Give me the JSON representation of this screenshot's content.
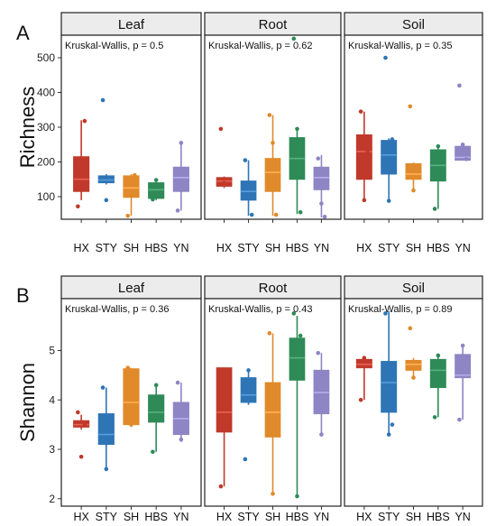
{
  "chart_data": [
    {
      "type": "box",
      "panel_label": "A",
      "ylabel": "Richness",
      "yticks": [
        100,
        200,
        300,
        400,
        500
      ],
      "ylim": [
        35,
        565
      ],
      "categories": [
        "HX",
        "STY",
        "SH",
        "HBS",
        "YN"
      ],
      "colors": [
        "#c0392b",
        "#2e75b6",
        "#e08a2b",
        "#2e8b57",
        "#8e85c4"
      ],
      "facets": [
        {
          "name": "Leaf",
          "stat": "Kruskal-Wallis, p = 0.5",
          "boxes": [
            {
              "q1": 115,
              "median": 150,
              "q3": 215,
              "min": 90,
              "max": 320,
              "points": [
                72,
                175,
                318
              ]
            },
            {
              "q1": 140,
              "median": 148,
              "q3": 160,
              "min": 135,
              "max": 165,
              "points": [
                378,
                90
              ]
            },
            {
              "q1": 98,
              "median": 125,
              "q3": 160,
              "min": 45,
              "max": 165,
              "points": [
                45,
                148,
                162
              ]
            },
            {
              "q1": 95,
              "median": 120,
              "q3": 140,
              "min": 90,
              "max": 148,
              "points": [
                92,
                148
              ]
            },
            {
              "q1": 115,
              "median": 155,
              "q3": 185,
              "min": 60,
              "max": 255,
              "points": [
                60,
                255
              ]
            }
          ]
        },
        {
          "name": "Root",
          "stat": "Kruskal-Wallis, p = 0.62",
          "boxes": [
            {
              "q1": 130,
              "median": 145,
              "q3": 155,
              "min": 125,
              "max": 158,
              "points": [
                295,
                140
              ]
            },
            {
              "q1": 90,
              "median": 115,
              "q3": 145,
              "min": 45,
              "max": 205,
              "points": [
                205,
                95,
                48
              ]
            },
            {
              "q1": 115,
              "median": 170,
              "q3": 210,
              "min": 45,
              "max": 335,
              "points": [
                335,
                255,
                48
              ]
            },
            {
              "q1": 150,
              "median": 210,
              "q3": 270,
              "min": 50,
              "max": 300,
              "points": [
                555,
                295,
                55
              ]
            },
            {
              "q1": 120,
              "median": 155,
              "q3": 185,
              "min": 40,
              "max": 220,
              "points": [
                210,
                80,
                42
              ]
            }
          ]
        },
        {
          "name": "Soil",
          "stat": "Kruskal-Wallis, p = 0.35",
          "boxes": [
            {
              "q1": 150,
              "median": 230,
              "q3": 278,
              "min": 88,
              "max": 345,
              "points": [
                345,
                90,
                230
              ]
            },
            {
              "q1": 165,
              "median": 220,
              "q3": 262,
              "min": 88,
              "max": 268,
              "points": [
                500,
                88,
                265
              ]
            },
            {
              "q1": 150,
              "median": 165,
              "q3": 195,
              "min": 115,
              "max": 198,
              "points": [
                360,
                118
              ]
            },
            {
              "q1": 145,
              "median": 190,
              "q3": 235,
              "min": 65,
              "max": 240,
              "points": [
                65,
                245
              ]
            },
            {
              "q1": 205,
              "median": 213,
              "q3": 245,
              "min": 205,
              "max": 245,
              "points": [
                420,
                250,
                208
              ]
            }
          ]
        }
      ]
    },
    {
      "type": "box",
      "panel_label": "B",
      "ylabel": "Shannon",
      "yticks": [
        2,
        3,
        4,
        5
      ],
      "ylim": [
        1.85,
        6.05
      ],
      "categories": [
        "HX",
        "STY",
        "SH",
        "HBS",
        "YN"
      ],
      "colors": [
        "#c0392b",
        "#2e75b6",
        "#e08a2b",
        "#2e8b57",
        "#8e85c4"
      ],
      "facets": [
        {
          "name": "Leaf",
          "stat": "Kruskal-Wallis, p = 0.36",
          "boxes": [
            {
              "q1": 3.45,
              "median": 3.5,
              "q3": 3.58,
              "min": 3.4,
              "max": 3.7,
              "points": [
                3.75,
                2.85,
                3.5
              ]
            },
            {
              "q1": 3.1,
              "median": 3.3,
              "q3": 3.72,
              "min": 2.6,
              "max": 4.25,
              "points": [
                4.25,
                2.6
              ]
            },
            {
              "q1": 3.5,
              "median": 3.95,
              "q3": 4.63,
              "min": 3.45,
              "max": 4.65,
              "points": [
                4.65,
                3.5
              ]
            },
            {
              "q1": 3.55,
              "median": 3.75,
              "q3": 4.1,
              "min": 2.95,
              "max": 4.3,
              "points": [
                2.95,
                4.3
              ]
            },
            {
              "q1": 3.3,
              "median": 3.62,
              "q3": 3.95,
              "min": 3.15,
              "max": 4.35,
              "points": [
                4.35,
                3.2
              ]
            }
          ]
        },
        {
          "name": "Root",
          "stat": "Kruskal-Wallis, p = 0.43",
          "boxes": [
            {
              "q1": 3.35,
              "median": 3.75,
              "q3": 4.65,
              "min": 2.25,
              "max": 4.65,
              "points": [
                2.25,
                4.6
              ]
            },
            {
              "q1": 3.95,
              "median": 4.1,
              "q3": 4.45,
              "min": 3.9,
              "max": 4.6,
              "points": [
                2.8,
                4.6
              ]
            },
            {
              "q1": 3.25,
              "median": 3.75,
              "q3": 4.35,
              "min": 2.1,
              "max": 5.35,
              "points": [
                5.35,
                2.1
              ]
            },
            {
              "q1": 4.4,
              "median": 4.85,
              "q3": 5.25,
              "min": 2.05,
              "max": 5.7,
              "points": [
                5.75,
                2.05,
                5.3
              ]
            },
            {
              "q1": 3.72,
              "median": 4.15,
              "q3": 4.6,
              "min": 3.3,
              "max": 4.95,
              "points": [
                4.95,
                3.3
              ]
            }
          ]
        },
        {
          "name": "Soil",
          "stat": "Kruskal-Wallis, p = 0.89",
          "boxes": [
            {
              "q1": 4.65,
              "median": 4.72,
              "q3": 4.82,
              "min": 4.0,
              "max": 4.88,
              "points": [
                4.0,
                4.85
              ]
            },
            {
              "q1": 3.75,
              "median": 4.35,
              "q3": 4.78,
              "min": 3.3,
              "max": 5.8,
              "points": [
                5.75,
                3.3,
                3.5
              ]
            },
            {
              "q1": 4.6,
              "median": 4.72,
              "q3": 4.8,
              "min": 4.45,
              "max": 4.85,
              "points": [
                5.45,
                4.45
              ]
            },
            {
              "q1": 4.25,
              "median": 4.6,
              "q3": 4.82,
              "min": 3.65,
              "max": 4.9,
              "points": [
                3.65,
                4.9
              ]
            },
            {
              "q1": 4.45,
              "median": 4.5,
              "q3": 4.92,
              "min": 3.6,
              "max": 5.1,
              "points": [
                3.6,
                5.1
              ]
            }
          ]
        }
      ]
    }
  ]
}
